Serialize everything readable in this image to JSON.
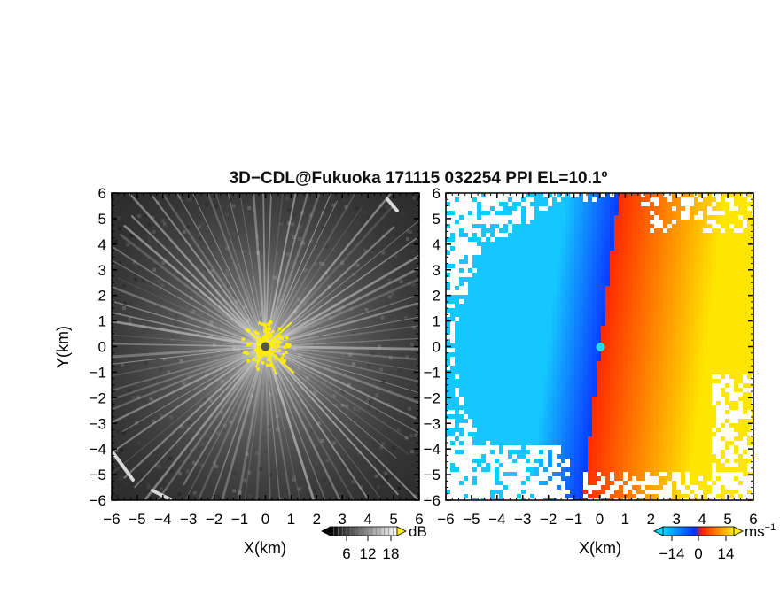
{
  "chart_data": [
    {
      "type": "heatmap",
      "title": "3D−CDL@Fukuoka 171115 032254 PPI EL=10.1º",
      "xlabel": "X(km)",
      "ylabel": "Y(km)",
      "xlim": [
        -6,
        6
      ],
      "ylim": [
        -6,
        6
      ],
      "xticks": [
        "−6",
        "−5",
        "−4",
        "−3",
        "−2",
        "−1",
        "0",
        "1",
        "2",
        "3",
        "4",
        "5",
        "6"
      ],
      "yticks": [
        "−6",
        "−5",
        "−4",
        "−3",
        "−2",
        "−1",
        "0",
        "1",
        "2",
        "3",
        "4",
        "5",
        "6"
      ],
      "quantity": "signal intensity",
      "colorbar": {
        "unit": "dB",
        "ticks": [
          "6",
          "12",
          "18"
        ],
        "range": [
          0,
          24
        ],
        "colors": [
          "#000000",
          "#ffffff",
          "#ffee00"
        ]
      },
      "colors": {
        "background_dark": "#2b2b2b",
        "ray_light": "#f2f2f2",
        "near_range": "#ffee00",
        "center": "#555555"
      }
    },
    {
      "type": "heatmap",
      "xlabel": "X(km)",
      "ylabel": "",
      "xlim": [
        -6,
        6
      ],
      "ylim": [
        -6,
        6
      ],
      "xticks": [
        "−6",
        "−5",
        "−4",
        "−3",
        "−2",
        "−1",
        "0",
        "1",
        "2",
        "3",
        "4",
        "5",
        "6"
      ],
      "yticks": [
        "−6",
        "−5",
        "−4",
        "−3",
        "−2",
        "−1",
        "0",
        "1",
        "2",
        "3",
        "4",
        "5",
        "6"
      ],
      "quantity": "Doppler velocity",
      "colorbar": {
        "unit": "ms",
        "unit_exponent": "−1",
        "ticks": [
          "−14",
          "0",
          "14"
        ],
        "range": [
          -20,
          20
        ],
        "colors": [
          "#00d8ff",
          "#0030ff",
          "#ff2000",
          "#ffee00"
        ]
      },
      "colors": {
        "away_far": "#ffe600",
        "away_near": "#ff2a00",
        "toward_near": "#0a3cff",
        "toward_far": "#14c8ff",
        "center": "#22dddd"
      }
    }
  ]
}
